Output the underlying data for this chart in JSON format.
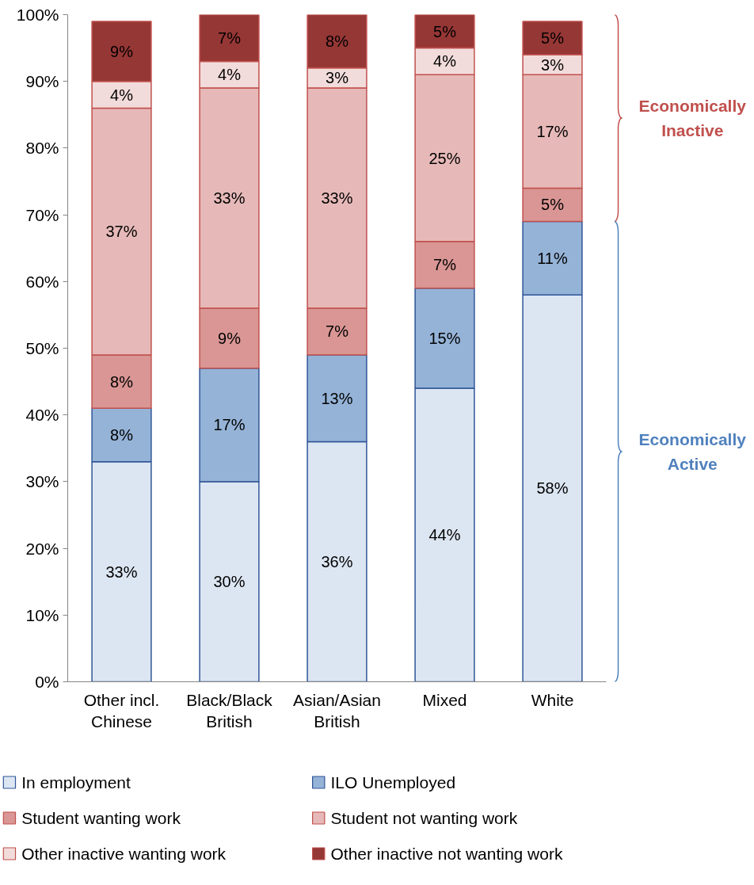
{
  "chart_data": {
    "type": "bar",
    "stacked": true,
    "grid": false,
    "legend": "bottom",
    "annotations": [
      "Economically Inactive",
      "Economically Active"
    ],
    "categories": [
      "Other incl. Chinese",
      "Black/Black British",
      "Asian/Asian British",
      "Mixed",
      "White"
    ],
    "ylim": [
      0,
      100
    ],
    "yticks": [
      {
        "value": 0,
        "label": "0%"
      },
      {
        "value": 10,
        "label": "10%"
      },
      {
        "value": 20,
        "label": "20%"
      },
      {
        "value": 30,
        "label": "30%"
      },
      {
        "value": 40,
        "label": "40%"
      },
      {
        "value": 50,
        "label": "50%"
      },
      {
        "value": 60,
        "label": "60%"
      },
      {
        "value": 70,
        "label": "70%"
      },
      {
        "value": 80,
        "label": "80%"
      },
      {
        "value": 90,
        "label": "90%"
      },
      {
        "value": 100,
        "label": "100%"
      }
    ],
    "series": [
      {
        "name": "In employment",
        "color": "#dce6f2",
        "values": [
          33,
          30,
          36,
          44,
          58
        ],
        "value_labels": [
          "33%",
          "30%",
          "36%",
          "44%",
          "58%"
        ]
      },
      {
        "name": "ILO Unemployed",
        "color": "#95b3d7",
        "values": [
          8,
          17,
          13,
          15,
          11
        ],
        "value_labels": [
          "8%",
          "17%",
          "13%",
          "15%",
          "11%"
        ]
      },
      {
        "name": "Student wanting work",
        "color": "#d99694",
        "values": [
          8,
          9,
          7,
          7,
          5
        ],
        "value_labels": [
          "8%",
          "9%",
          "7%",
          "7%",
          "5%"
        ]
      },
      {
        "name": "Student not wanting work",
        "color": "#e6b9b8",
        "values": [
          37,
          33,
          33,
          25,
          17
        ],
        "value_labels": [
          "37%",
          "33%",
          "33%",
          "25%",
          "17%"
        ]
      },
      {
        "name": "Other inactive wanting work",
        "color": "#f2dcdb",
        "values": [
          4,
          4,
          3,
          4,
          3
        ],
        "value_labels": [
          "4%",
          "4%",
          "3%",
          "4%",
          "3%"
        ]
      },
      {
        "name": "Other inactive not wanting work",
        "color": "#953735",
        "values": [
          9,
          7,
          8,
          5,
          5
        ],
        "value_labels": [
          "9%",
          "7%",
          "8%",
          "5%",
          "5%"
        ]
      }
    ]
  }
}
